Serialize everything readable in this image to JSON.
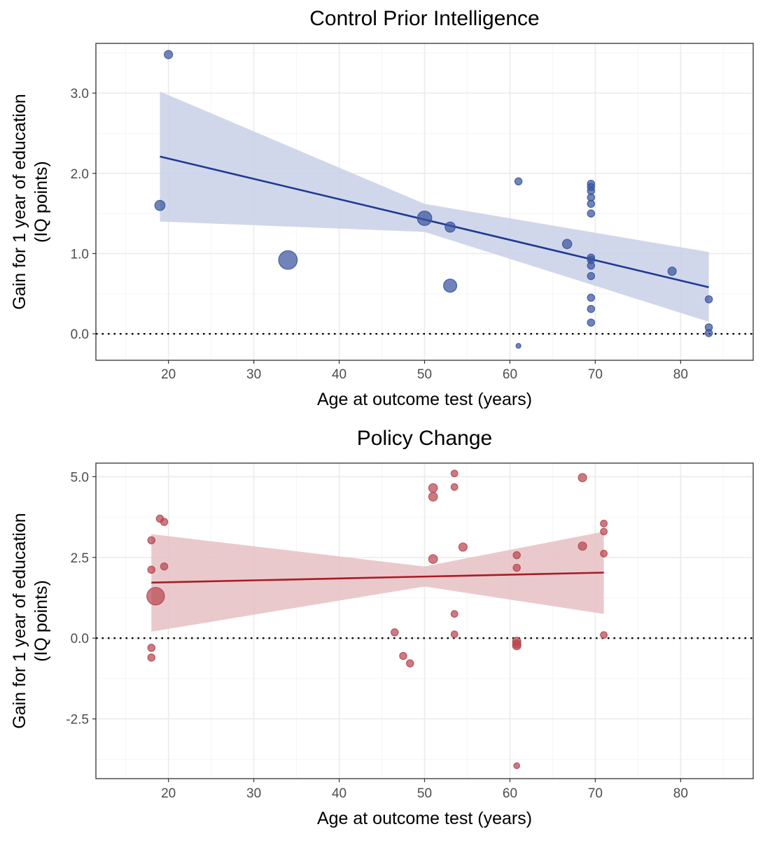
{
  "chart_data": [
    {
      "type": "scatter",
      "title": "Control Prior Intelligence",
      "xlabel": "Age at outcome test (years)",
      "ylabel": [
        "Gain for 1 year of education",
        "(IQ points)"
      ],
      "xlim": [
        11.5,
        88.5
      ],
      "ylim": [
        -0.33,
        3.62
      ],
      "x_ticks": [
        20,
        30,
        40,
        50,
        60,
        70,
        80
      ],
      "y_ticks": [
        0.0,
        1.0,
        2.0,
        3.0
      ],
      "y_tick_labels": [
        "0.0",
        "1.0",
        "2.0",
        "3.0"
      ],
      "grid": true,
      "reference_line": {
        "y": 0,
        "style": "dotted"
      },
      "color": "#3a559f",
      "line_color": "#1f3a93",
      "band_color": "#c9d0e6",
      "points": [
        {
          "x": 20.0,
          "y": 3.48,
          "w": 2
        },
        {
          "x": 19.0,
          "y": 1.6,
          "w": 3
        },
        {
          "x": 34.0,
          "y": 0.92,
          "w": 10
        },
        {
          "x": 50.0,
          "y": 1.44,
          "w": 6
        },
        {
          "x": 53.0,
          "y": 1.33,
          "w": 3
        },
        {
          "x": 53.0,
          "y": 0.6,
          "w": 5
        },
        {
          "x": 61.0,
          "y": 1.9,
          "w": 1.5
        },
        {
          "x": 61.0,
          "y": -0.15,
          "w": 0.7
        },
        {
          "x": 66.7,
          "y": 1.12,
          "w": 2.5
        },
        {
          "x": 69.5,
          "y": 1.87,
          "w": 1.5
        },
        {
          "x": 69.5,
          "y": 1.83,
          "w": 1.5
        },
        {
          "x": 69.5,
          "y": 1.78,
          "w": 1.5
        },
        {
          "x": 69.5,
          "y": 1.7,
          "w": 1.5
        },
        {
          "x": 69.5,
          "y": 1.62,
          "w": 1.5
        },
        {
          "x": 69.5,
          "y": 1.5,
          "w": 1.5
        },
        {
          "x": 69.5,
          "y": 0.95,
          "w": 1.5
        },
        {
          "x": 69.5,
          "y": 0.92,
          "w": 1.5
        },
        {
          "x": 69.5,
          "y": 0.85,
          "w": 1.5
        },
        {
          "x": 69.5,
          "y": 0.72,
          "w": 1.5
        },
        {
          "x": 69.5,
          "y": 0.45,
          "w": 1.5
        },
        {
          "x": 69.5,
          "y": 0.31,
          "w": 1.5
        },
        {
          "x": 69.5,
          "y": 0.14,
          "w": 1.5
        },
        {
          "x": 79.0,
          "y": 0.78,
          "w": 2
        },
        {
          "x": 83.3,
          "y": 0.43,
          "w": 1.5
        },
        {
          "x": 83.3,
          "y": 0.08,
          "w": 1.5
        },
        {
          "x": 83.3,
          "y": 0.01,
          "w": 1.5
        }
      ],
      "fit": {
        "x": [
          19,
          83.3
        ],
        "y": [
          2.21,
          0.58
        ]
      },
      "ci_band": {
        "x": [
          19,
          50,
          83.3
        ],
        "lower": [
          1.4,
          1.27,
          0.15
        ],
        "upper": [
          3.02,
          1.62,
          1.02
        ]
      }
    },
    {
      "type": "scatter",
      "title": "Policy Change",
      "xlabel": "Age at outcome test (years)",
      "ylabel": [
        "Gain for 1 year of education",
        "(IQ points)"
      ],
      "xlim": [
        11.5,
        88.5
      ],
      "ylim": [
        -4.35,
        5.42
      ],
      "x_ticks": [
        20,
        30,
        40,
        50,
        60,
        70,
        80
      ],
      "y_ticks": [
        -2.5,
        0.0,
        2.5,
        5.0
      ],
      "y_tick_labels": [
        "-2.5",
        "0.0",
        "2.5",
        "5.0"
      ],
      "grid": true,
      "reference_line": {
        "y": 0,
        "style": "dotted"
      },
      "color": "#b74850",
      "line_color": "#a81c22",
      "band_color": "#e6c0c4",
      "points": [
        {
          "x": 19.0,
          "y": 3.7,
          "w": 1.5
        },
        {
          "x": 19.5,
          "y": 3.6,
          "w": 1.5
        },
        {
          "x": 18.0,
          "y": 3.03,
          "w": 1.5
        },
        {
          "x": 19.5,
          "y": 2.22,
          "w": 1.5
        },
        {
          "x": 18.0,
          "y": 2.12,
          "w": 1.5
        },
        {
          "x": 18.5,
          "y": 1.3,
          "w": 9
        },
        {
          "x": 18.0,
          "y": -0.3,
          "w": 1.5
        },
        {
          "x": 18.0,
          "y": -0.6,
          "w": 1.5
        },
        {
          "x": 46.5,
          "y": 0.18,
          "w": 1.5
        },
        {
          "x": 47.5,
          "y": -0.55,
          "w": 1.5
        },
        {
          "x": 48.3,
          "y": -0.78,
          "w": 1.5
        },
        {
          "x": 51.0,
          "y": 4.65,
          "w": 2.2
        },
        {
          "x": 51.0,
          "y": 4.38,
          "w": 2.2
        },
        {
          "x": 51.0,
          "y": 2.45,
          "w": 2.2
        },
        {
          "x": 53.5,
          "y": 5.1,
          "w": 1.3
        },
        {
          "x": 53.5,
          "y": 4.68,
          "w": 1.3
        },
        {
          "x": 53.5,
          "y": 0.75,
          "w": 1.3
        },
        {
          "x": 53.5,
          "y": 0.12,
          "w": 1.3
        },
        {
          "x": 54.5,
          "y": 2.82,
          "w": 2
        },
        {
          "x": 60.8,
          "y": 2.57,
          "w": 1.5
        },
        {
          "x": 60.8,
          "y": 2.18,
          "w": 1.5
        },
        {
          "x": 60.8,
          "y": -0.1,
          "w": 2
        },
        {
          "x": 60.8,
          "y": -0.18,
          "w": 2
        },
        {
          "x": 60.8,
          "y": -0.23,
          "w": 2
        },
        {
          "x": 60.8,
          "y": -3.95,
          "w": 1
        },
        {
          "x": 68.5,
          "y": 4.97,
          "w": 2
        },
        {
          "x": 68.5,
          "y": 2.85,
          "w": 2
        },
        {
          "x": 71.0,
          "y": 3.55,
          "w": 1.3
        },
        {
          "x": 71.0,
          "y": 3.3,
          "w": 1.3
        },
        {
          "x": 71.0,
          "y": 2.62,
          "w": 1.3
        },
        {
          "x": 71.0,
          "y": 0.1,
          "w": 1.3
        }
      ],
      "fit": {
        "x": [
          18,
          71
        ],
        "y": [
          1.72,
          2.03
        ]
      },
      "ci_band": {
        "x": [
          18,
          50,
          71
        ],
        "lower": [
          0.2,
          1.6,
          0.75
        ],
        "upper": [
          3.22,
          2.22,
          3.3
        ]
      }
    }
  ]
}
